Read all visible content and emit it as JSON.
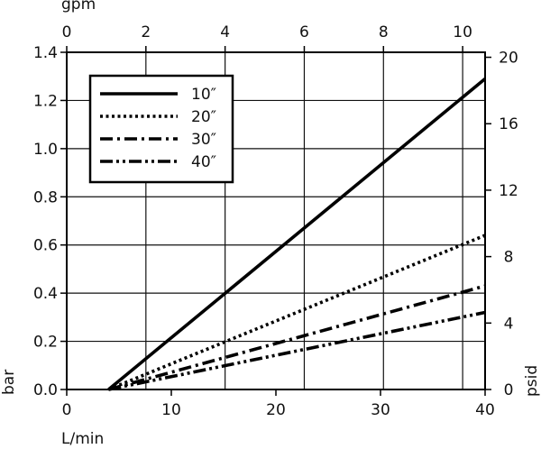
{
  "chart_data": {
    "type": "line",
    "axes": {
      "x_bottom": {
        "label": "L/min",
        "range": [
          0,
          40
        ],
        "ticks": [
          0,
          10,
          20,
          30,
          40
        ]
      },
      "x_top": {
        "label": "gpm",
        "range": [
          0,
          10.5669
        ],
        "ticks": [
          0,
          2,
          4,
          6,
          8,
          10
        ]
      },
      "y_left": {
        "label": "bar",
        "range": [
          0,
          1.4
        ],
        "ticks": [
          0.0,
          0.2,
          0.4,
          0.6,
          0.8,
          1.0,
          1.2,
          1.4
        ],
        "tick_labels": [
          "0.0",
          "0.2",
          "0.4",
          "0.6",
          "0.8",
          "1.0",
          "1.2",
          "1.4"
        ]
      },
      "y_right": {
        "label": "psid",
        "range": [
          0,
          20.3
        ],
        "ticks": [
          0,
          4,
          8,
          12,
          16,
          20
        ]
      }
    },
    "grid": true,
    "legend_position": "top-left",
    "series": [
      {
        "name": "10″",
        "style": "solid",
        "x": [
          4,
          40
        ],
        "y": [
          0.0,
          1.29
        ]
      },
      {
        "name": "20″",
        "style": "dotted",
        "x": [
          4,
          40
        ],
        "y": [
          0.0,
          0.64
        ]
      },
      {
        "name": "30″",
        "style": "dash-dot",
        "x": [
          4,
          40
        ],
        "y": [
          0.0,
          0.43
        ]
      },
      {
        "name": "40″",
        "style": "dash-dot-dot",
        "x": [
          4,
          40
        ],
        "y": [
          0.0,
          0.32
        ]
      }
    ],
    "colors": {
      "line": "#000000",
      "grid": "#111111",
      "background": "#ffffff"
    }
  }
}
